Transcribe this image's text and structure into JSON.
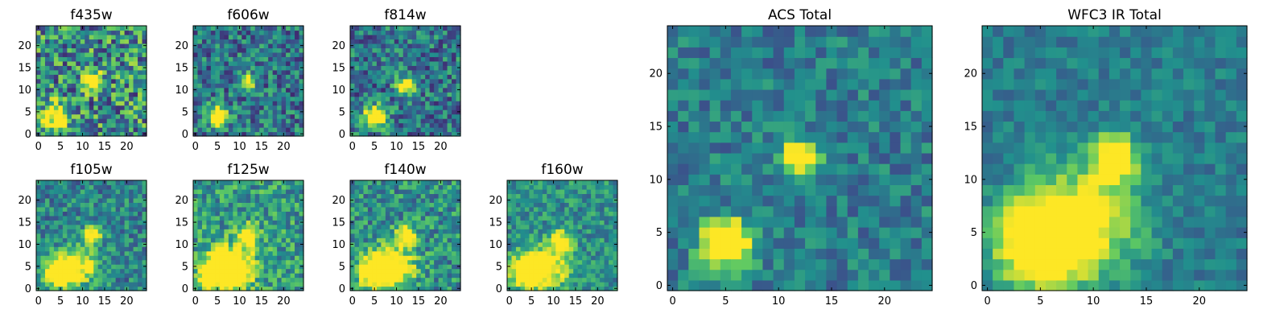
{
  "figure": {
    "background": "#ffffff",
    "colormap": "viridis",
    "colormap_stops": [
      "#440154",
      "#3b528b",
      "#21908d",
      "#5dc963",
      "#fde725"
    ]
  },
  "chart_data": [
    {
      "type": "heatmap",
      "id": "f435w",
      "title": "f435w",
      "xlim": [
        0,
        24
      ],
      "ylim": [
        0,
        24
      ],
      "xticks": [
        0,
        5,
        10,
        15,
        20
      ],
      "yticks": [
        0,
        5,
        10,
        15,
        20
      ],
      "noise_level": 0.75,
      "background_level": 0.5,
      "sources": [
        {
          "x": 12,
          "y": 12,
          "peak": 1.0,
          "sigma": 1.4
        },
        {
          "x": 4,
          "y": 4,
          "peak": 0.8,
          "sigma": 2.0
        }
      ]
    },
    {
      "type": "heatmap",
      "id": "f606w",
      "title": "f606w",
      "xlim": [
        0,
        24
      ],
      "ylim": [
        0,
        24
      ],
      "xticks": [
        0,
        5,
        10,
        15,
        20
      ],
      "yticks": [
        0,
        5,
        10,
        15,
        20
      ],
      "noise_level": 0.55,
      "background_level": 0.4,
      "sources": [
        {
          "x": 12,
          "y": 12,
          "peak": 0.75,
          "sigma": 1.3
        },
        {
          "x": 5,
          "y": 4,
          "peak": 1.0,
          "sigma": 1.6
        }
      ]
    },
    {
      "type": "heatmap",
      "id": "f814w",
      "title": "f814w",
      "xlim": [
        0,
        24
      ],
      "ylim": [
        0,
        24
      ],
      "xticks": [
        0,
        5,
        10,
        15,
        20
      ],
      "yticks": [
        0,
        5,
        10,
        15,
        20
      ],
      "noise_level": 0.55,
      "background_level": 0.4,
      "sources": [
        {
          "x": 12,
          "y": 11,
          "peak": 0.95,
          "sigma": 1.3
        },
        {
          "x": 5,
          "y": 4,
          "peak": 1.0,
          "sigma": 1.7
        }
      ]
    },
    {
      "type": "heatmap",
      "id": "f105w",
      "title": "f105w",
      "xlim": [
        0,
        24
      ],
      "ylim": [
        0,
        24
      ],
      "xticks": [
        0,
        5,
        10,
        15,
        20
      ],
      "yticks": [
        0,
        5,
        10,
        15,
        20
      ],
      "noise_level": 0.45,
      "background_level": 0.45,
      "sources": [
        {
          "x": 12,
          "y": 12,
          "peak": 0.8,
          "sigma": 1.4
        },
        {
          "x": 5,
          "y": 4,
          "peak": 1.0,
          "sigma": 2.4
        },
        {
          "x": 10,
          "y": 5,
          "peak": 0.5,
          "sigma": 3.0
        }
      ]
    },
    {
      "type": "heatmap",
      "id": "f125w",
      "title": "f125w",
      "xlim": [
        0,
        24
      ],
      "ylim": [
        0,
        24
      ],
      "xticks": [
        0,
        5,
        10,
        15,
        20
      ],
      "yticks": [
        0,
        5,
        10,
        15,
        20
      ],
      "noise_level": 0.5,
      "background_level": 0.55,
      "sources": [
        {
          "x": 12,
          "y": 12,
          "peak": 0.7,
          "sigma": 1.6
        },
        {
          "x": 5,
          "y": 4,
          "peak": 1.0,
          "sigma": 2.6
        },
        {
          "x": 9,
          "y": 5,
          "peak": 0.7,
          "sigma": 3.2
        }
      ]
    },
    {
      "type": "heatmap",
      "id": "f140w",
      "title": "f140w",
      "xlim": [
        0,
        24
      ],
      "ylim": [
        0,
        24
      ],
      "xticks": [
        0,
        5,
        10,
        15,
        20
      ],
      "yticks": [
        0,
        5,
        10,
        15,
        20
      ],
      "noise_level": 0.5,
      "background_level": 0.5,
      "sources": [
        {
          "x": 12,
          "y": 12,
          "peak": 0.75,
          "sigma": 1.5
        },
        {
          "x": 5,
          "y": 4,
          "peak": 1.0,
          "sigma": 2.6
        },
        {
          "x": 10,
          "y": 5,
          "peak": 0.6,
          "sigma": 3.2
        }
      ]
    },
    {
      "type": "heatmap",
      "id": "f160w",
      "title": "f160w",
      "xlim": [
        0,
        24
      ],
      "ylim": [
        0,
        24
      ],
      "xticks": [
        0,
        5,
        10,
        15,
        20
      ],
      "yticks": [
        0,
        5,
        10,
        15,
        20
      ],
      "noise_level": 0.4,
      "background_level": 0.5,
      "sources": [
        {
          "x": 12,
          "y": 11,
          "peak": 0.6,
          "sigma": 1.6
        },
        {
          "x": 4,
          "y": 4,
          "peak": 1.0,
          "sigma": 2.4
        },
        {
          "x": 9,
          "y": 5,
          "peak": 0.6,
          "sigma": 3.4
        }
      ]
    },
    {
      "type": "heatmap",
      "id": "acs-total",
      "title": "ACS Total",
      "xlim": [
        0,
        24
      ],
      "ylim": [
        0,
        24
      ],
      "xticks": [
        0,
        5,
        10,
        15,
        20
      ],
      "yticks": [
        0,
        5,
        10,
        15,
        20
      ],
      "noise_level": 0.35,
      "background_level": 0.42,
      "sources": [
        {
          "x": 12,
          "y": 12,
          "peak": 1.0,
          "sigma": 1.2
        },
        {
          "x": 5,
          "y": 4,
          "peak": 1.0,
          "sigma": 1.6
        }
      ]
    },
    {
      "type": "heatmap",
      "id": "wfc3-ir-total",
      "title": "WFC3 IR Total",
      "xlim": [
        0,
        24
      ],
      "ylim": [
        0,
        24
      ],
      "xticks": [
        0,
        5,
        10,
        15,
        20
      ],
      "yticks": [
        0,
        5,
        10,
        15,
        20
      ],
      "noise_level": 0.25,
      "background_level": 0.42,
      "sources": [
        {
          "x": 12,
          "y": 12,
          "peak": 0.8,
          "sigma": 1.5
        },
        {
          "x": 5,
          "y": 4,
          "peak": 1.0,
          "sigma": 2.8
        },
        {
          "x": 9,
          "y": 6,
          "peak": 0.6,
          "sigma": 3.6
        }
      ]
    }
  ]
}
